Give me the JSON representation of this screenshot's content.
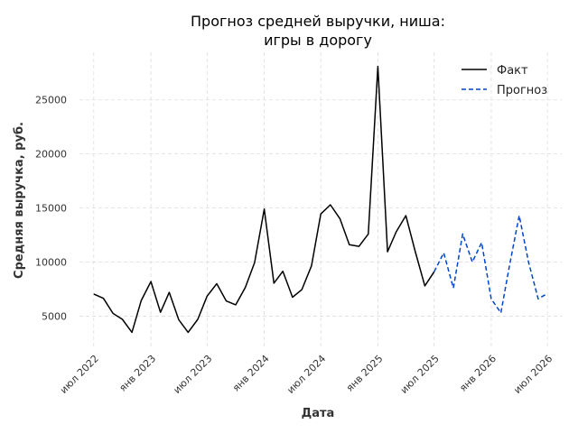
{
  "chart_data": {
    "type": "line",
    "title_line1": "Прогноз средней выручки, ниша:",
    "title_line2": "игры в дорогу",
    "xlabel": "Дата",
    "ylabel": "Средняя выручка, руб.",
    "xlim": [
      "2022-05-16",
      "2026-08-16"
    ],
    "ylim": [
      2200,
      29400
    ],
    "x_ticks": [
      {
        "date": "2022-07-01",
        "label": "июл 2022"
      },
      {
        "date": "2023-01-01",
        "label": "янв 2023"
      },
      {
        "date": "2023-07-01",
        "label": "июл 2023"
      },
      {
        "date": "2024-01-01",
        "label": "янв 2024"
      },
      {
        "date": "2024-07-01",
        "label": "июл 2024"
      },
      {
        "date": "2025-01-01",
        "label": "янв 2025"
      },
      {
        "date": "2025-07-01",
        "label": "июл 2025"
      },
      {
        "date": "2026-01-01",
        "label": "янв 2026"
      },
      {
        "date": "2026-07-01",
        "label": "июл 2026"
      }
    ],
    "y_ticks": [
      5000,
      10000,
      15000,
      20000,
      25000
    ],
    "grid": true,
    "legend_position": "top-right",
    "series": [
      {
        "name": "Факт",
        "color": "#000000",
        "style": "solid",
        "x": [
          "2022-07-01",
          "2022-08-01",
          "2022-09-01",
          "2022-10-01",
          "2022-11-01",
          "2022-12-01",
          "2023-01-01",
          "2023-02-01",
          "2023-03-01",
          "2023-04-01",
          "2023-05-01",
          "2023-06-01",
          "2023-07-01",
          "2023-08-01",
          "2023-09-01",
          "2023-10-01",
          "2023-11-01",
          "2023-12-01",
          "2024-01-01",
          "2024-02-01",
          "2024-03-01",
          "2024-04-01",
          "2024-05-01",
          "2024-06-01",
          "2024-07-01",
          "2024-08-01",
          "2024-09-01",
          "2024-10-01",
          "2024-11-01",
          "2024-12-01",
          "2025-01-01",
          "2025-02-01",
          "2025-03-01",
          "2025-04-01",
          "2025-05-01",
          "2025-06-01",
          "2025-07-01"
        ],
        "y": [
          7050,
          6650,
          5250,
          4700,
          3500,
          6450,
          8200,
          5350,
          7200,
          4650,
          3500,
          4700,
          6850,
          8000,
          6400,
          6050,
          7650,
          9950,
          14900,
          8050,
          9150,
          6750,
          7450,
          9650,
          14450,
          15300,
          14000,
          11600,
          11450,
          12600,
          28100,
          10950,
          12800,
          14300,
          11000,
          7800,
          9100
        ]
      },
      {
        "name": "Прогноз",
        "color": "#0044cc",
        "style": "dashed",
        "x": [
          "2025-07-01",
          "2025-08-01",
          "2025-09-01",
          "2025-10-01",
          "2025-11-01",
          "2025-12-01",
          "2026-01-01",
          "2026-02-01",
          "2026-03-01",
          "2026-04-01",
          "2026-05-01",
          "2026-06-01",
          "2026-07-01"
        ],
        "y": [
          9100,
          10850,
          7600,
          12600,
          10000,
          11800,
          6600,
          5300,
          9700,
          14300,
          10000,
          6600,
          7100
        ]
      }
    ]
  }
}
